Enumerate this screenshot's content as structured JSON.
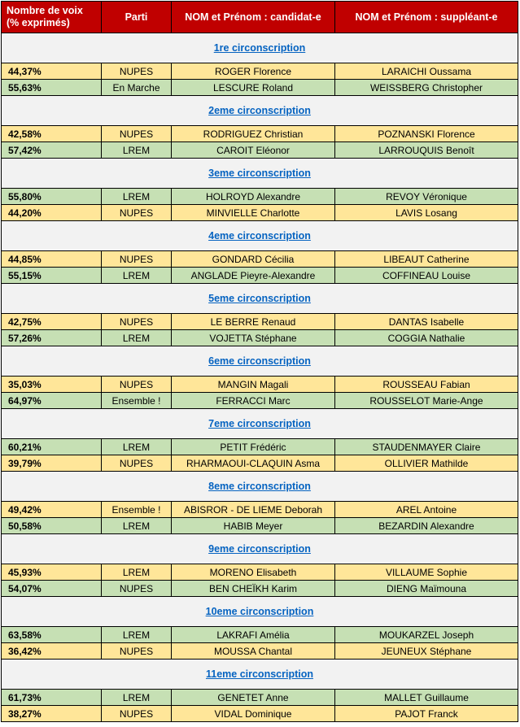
{
  "headers": {
    "votes_line1": "Nombre de voix",
    "votes_line2": "(% exprimés)",
    "party": "Parti",
    "candidate": "NOM et Prénom : candidat-e",
    "substitute": "NOM et Prénom : suppléant-e"
  },
  "row_colors": {
    "yellow": "#ffe699",
    "green": "#c6e0b4",
    "header": "#c00000",
    "link": "#0563c1"
  },
  "sections": [
    {
      "title": "1re circonscription",
      "rows": [
        {
          "color": "yellow",
          "pct": "44,37%",
          "party": "NUPES",
          "candidate": "ROGER Florence",
          "substitute": "LARAICHI Oussama"
        },
        {
          "color": "green",
          "pct": "55,63%",
          "party": "En Marche",
          "candidate": "LESCURE Roland",
          "substitute": "WEISSBERG Christopher"
        }
      ]
    },
    {
      "title": "2eme circonscription",
      "rows": [
        {
          "color": "yellow",
          "pct": "42,58%",
          "party": "NUPES",
          "candidate": "RODRIGUEZ Christian",
          "substitute": "POZNANSKI Florence"
        },
        {
          "color": "green",
          "pct": "57,42%",
          "party": "LREM",
          "candidate": "CAROIT Eléonor",
          "substitute": "LARROUQUIS Benoît"
        }
      ]
    },
    {
      "title": "3eme circonscription",
      "rows": [
        {
          "color": "green",
          "pct": "55,80%",
          "party": "LREM",
          "candidate": "HOLROYD Alexandre",
          "substitute": "REVOY Véronique"
        },
        {
          "color": "yellow",
          "pct": "44,20%",
          "party": "NUPES",
          "candidate": "MINVIELLE Charlotte",
          "substitute": "LAVIS Losang"
        }
      ]
    },
    {
      "title": "4eme circonscription",
      "rows": [
        {
          "color": "yellow",
          "pct": "44,85%",
          "party": "NUPES",
          "candidate": "GONDARD Cécilia",
          "substitute": "LIBEAUT Catherine"
        },
        {
          "color": "green",
          "pct": "55,15%",
          "party": "LREM",
          "candidate": "ANGLADE Pieyre-Alexandre",
          "substitute": "COFFINEAU Louise"
        }
      ]
    },
    {
      "title": "5eme circonscription",
      "rows": [
        {
          "color": "yellow",
          "pct": "42,75%",
          "party": "NUPES",
          "candidate": "LE BERRE Renaud",
          "substitute": "DANTAS Isabelle"
        },
        {
          "color": "green",
          "pct": "57,26%",
          "party": "LREM",
          "candidate": "VOJETTA Stéphane",
          "substitute": "COGGIA Nathalie"
        }
      ]
    },
    {
      "title": "6eme circonscription",
      "rows": [
        {
          "color": "yellow",
          "pct": "35,03%",
          "party": "NUPES",
          "candidate": "MANGIN Magali",
          "substitute": "ROUSSEAU Fabian"
        },
        {
          "color": "green",
          "pct": "64,97%",
          "party": "Ensemble !",
          "candidate": "FERRACCI Marc",
          "substitute": "ROUSSELOT Marie-Ange"
        }
      ]
    },
    {
      "title": "7eme circonscription",
      "rows": [
        {
          "color": "green",
          "pct": "60,21%",
          "party": "LREM",
          "candidate": "PETIT Frédéric",
          "substitute": "STAUDENMAYER Claire"
        },
        {
          "color": "yellow",
          "pct": "39,79%",
          "party": "NUPES",
          "candidate": "RHARMAOUI-CLAQUIN Asma",
          "substitute": "OLLIVIER Mathilde"
        }
      ]
    },
    {
      "title": "8eme circonscription",
      "rows": [
        {
          "color": "yellow",
          "pct": "49,42%",
          "party": "Ensemble !",
          "candidate": "ABISROR - DE LIEME Deborah",
          "substitute": "AREL Antoine"
        },
        {
          "color": "green",
          "pct": "50,58%",
          "party": "LREM",
          "candidate": "HABIB Meyer",
          "substitute": "BEZARDIN Alexandre"
        }
      ]
    },
    {
      "title": "9eme circonscription",
      "rows": [
        {
          "color": "yellow",
          "pct": "45,93%",
          "party": "LREM",
          "candidate": "MORENO Elisabeth",
          "substitute": "VILLAUME Sophie"
        },
        {
          "color": "green",
          "pct": "54,07%",
          "party": "NUPES",
          "candidate": "BEN CHEÏKH Karim",
          "substitute": "DIENG Maïmouna"
        }
      ]
    },
    {
      "title": "10eme circonscription",
      "rows": [
        {
          "color": "green",
          "pct": "63,58%",
          "party": "LREM",
          "candidate": "LAKRAFI Amélia",
          "substitute": "MOUKARZEL Joseph"
        },
        {
          "color": "yellow",
          "pct": "36,42%",
          "party": "NUPES",
          "candidate": "MOUSSA Chantal",
          "substitute": "JEUNEUX Stéphane"
        }
      ]
    },
    {
      "title": "11eme circonscription",
      "rows": [
        {
          "color": "green",
          "pct": "61,73%",
          "party": "LREM",
          "candidate": "GENETET Anne",
          "substitute": "MALLET Guillaume"
        },
        {
          "color": "yellow",
          "pct": "38,27%",
          "party": "NUPES",
          "candidate": "VIDAL Dominique",
          "substitute": "PAJOT Franck"
        }
      ]
    }
  ]
}
